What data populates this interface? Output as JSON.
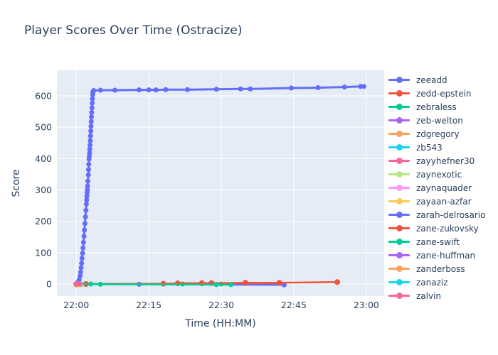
{
  "title": "Player Scores Over Time (Ostracize)",
  "colors": {
    "text": "#2a3f5f",
    "plot_background": "#E5ECF6",
    "gridline": "#ffffff",
    "palette": [
      "#636EFA",
      "#EF553B",
      "#00CC96",
      "#AB63FA",
      "#FFA15A",
      "#19D3F3",
      "#FF6692",
      "#B6E880",
      "#FF97FF",
      "#FECB52"
    ]
  },
  "chart_data": {
    "type": "line",
    "title": "Player Scores Over Time (Ostracize)",
    "xlabel": "Time (HH:MM)",
    "ylabel": "Score",
    "x_tick_labels": [
      "22:00",
      "22:15",
      "22:30",
      "22:45",
      "23:00"
    ],
    "x_tick_minutes": [
      0,
      15,
      30,
      45,
      60
    ],
    "y_ticks": [
      0,
      100,
      200,
      300,
      400,
      500,
      600
    ],
    "xlim_minutes": [
      -4,
      63.7
    ],
    "ylim": [
      -38.5,
      681.5
    ],
    "grid": true,
    "legend_position": "right",
    "series": [
      {
        "name": "zeeadd",
        "color": "#636EFA",
        "line_width": 3,
        "marker_r": 3.5,
        "points": [
          [
            0,
            0
          ],
          [
            0.4,
            6
          ],
          [
            0.6,
            14
          ],
          [
            0.8,
            26
          ],
          [
            0.9,
            38
          ],
          [
            1.0,
            52
          ],
          [
            1.1,
            66
          ],
          [
            1.2,
            82
          ],
          [
            1.3,
            98
          ],
          [
            1.4,
            115
          ],
          [
            1.5,
            133
          ],
          [
            1.6,
            152
          ],
          [
            1.7,
            172
          ],
          [
            1.8,
            193
          ],
          [
            1.9,
            214
          ],
          [
            2.0,
            235
          ],
          [
            2.1,
            255
          ],
          [
            2.15,
            268
          ],
          [
            2.2,
            280
          ],
          [
            2.25,
            292
          ],
          [
            2.3,
            300
          ],
          [
            2.35,
            312
          ],
          [
            2.4,
            328
          ],
          [
            2.5,
            348
          ],
          [
            2.55,
            365
          ],
          [
            2.6,
            382
          ],
          [
            2.65,
            398
          ],
          [
            2.7,
            408
          ],
          [
            2.75,
            418
          ],
          [
            2.8,
            430
          ],
          [
            2.85,
            443
          ],
          [
            2.9,
            457
          ],
          [
            2.95,
            472
          ],
          [
            3.0,
            488
          ],
          [
            3.05,
            503
          ],
          [
            3.1,
            518
          ],
          [
            3.15,
            533
          ],
          [
            3.2,
            547
          ],
          [
            3.25,
            562
          ],
          [
            3.3,
            577
          ],
          [
            3.35,
            591
          ],
          [
            3.4,
            604
          ],
          [
            3.45,
            612
          ],
          [
            3.6,
            617
          ],
          [
            5,
            618
          ],
          [
            8,
            618
          ],
          [
            13,
            619
          ],
          [
            15,
            619
          ],
          [
            16.5,
            619
          ],
          [
            18.5,
            620
          ],
          [
            23,
            620
          ],
          [
            29,
            621
          ],
          [
            34,
            622
          ],
          [
            36,
            622
          ],
          [
            44.5,
            625
          ],
          [
            50,
            626
          ],
          [
            55.5,
            628
          ],
          [
            58.8,
            630
          ],
          [
            59.5,
            630
          ]
        ]
      },
      {
        "name": "zedd-epstein",
        "color": "#EF553B",
        "line_width": 2.5,
        "marker_r": 3.5,
        "points": [
          [
            0,
            0
          ],
          [
            2,
            0
          ],
          [
            26,
            1
          ],
          [
            35,
            2
          ],
          [
            42,
            2
          ]
        ]
      },
      {
        "name": "zebraless",
        "color": "#00CC96",
        "line_width": 2.5,
        "marker_r": 3.5,
        "points": [
          [
            0,
            0
          ],
          [
            3,
            0
          ],
          [
            22,
            0
          ],
          [
            30,
            0
          ]
        ]
      },
      {
        "name": "zeb-welton",
        "color": "#AB63FA",
        "line_width": 2.5,
        "marker_r": 3.5,
        "points": [
          [
            0,
            0
          ],
          [
            1,
            0
          ]
        ]
      },
      {
        "name": "zdgregory",
        "color": "#FFA15A",
        "line_width": 2.5,
        "marker_r": 3.5,
        "points": [
          [
            0,
            0
          ],
          [
            0.5,
            0
          ]
        ]
      },
      {
        "name": "zb543",
        "color": "#19D3F3",
        "line_width": 2.5,
        "marker_r": 3.5,
        "points": [
          [
            0,
            0
          ],
          [
            1,
            0
          ]
        ]
      },
      {
        "name": "zayyhefner30",
        "color": "#FF6692",
        "line_width": 2.5,
        "marker_r": 3.5,
        "points": [
          [
            0,
            0
          ],
          [
            1,
            0
          ]
        ]
      },
      {
        "name": "zaynexotic",
        "color": "#B6E880",
        "line_width": 2.5,
        "marker_r": 3.5,
        "points": [
          [
            0,
            0
          ],
          [
            0.7,
            0
          ]
        ]
      },
      {
        "name": "zaynaquader",
        "color": "#FF97FF",
        "line_width": 2.5,
        "marker_r": 3.5,
        "points": [
          [
            0,
            0
          ],
          [
            0.9,
            0
          ]
        ]
      },
      {
        "name": "zayaan-azfar",
        "color": "#FECB52",
        "line_width": 2.5,
        "marker_r": 4,
        "points": [
          [
            0,
            -2
          ],
          [
            0.5,
            -2
          ]
        ]
      },
      {
        "name": "zarah-delrosario",
        "color": "#636EFA",
        "line_width": 2.5,
        "marker_r": 3.5,
        "points": [
          [
            0,
            0
          ],
          [
            13,
            -1
          ],
          [
            43,
            -3
          ]
        ]
      },
      {
        "name": "zane-zukovsky",
        "color": "#EF553B",
        "line_width": 2.5,
        "marker_r": 4,
        "points": [
          [
            0,
            0
          ],
          [
            2,
            0
          ],
          [
            18,
            1
          ],
          [
            21,
            2
          ],
          [
            26,
            3
          ],
          [
            28,
            3
          ],
          [
            35,
            4
          ],
          [
            42,
            4
          ],
          [
            54,
            6
          ]
        ]
      },
      {
        "name": "zane-swift",
        "color": "#00CC96",
        "line_width": 2.5,
        "marker_r": 3.5,
        "points": [
          [
            0,
            0
          ],
          [
            5,
            -1
          ],
          [
            29,
            -2
          ],
          [
            32,
            -2
          ]
        ]
      },
      {
        "name": "zane-huffman",
        "color": "#AB63FA",
        "line_width": 2.5,
        "marker_r": 3.5,
        "points": [
          [
            0,
            0
          ],
          [
            1,
            -1
          ]
        ]
      },
      {
        "name": "zanderboss",
        "color": "#FFA15A",
        "line_width": 2.5,
        "marker_r": 3.5,
        "points": [
          [
            0.3,
            -1
          ],
          [
            1,
            -1
          ]
        ]
      },
      {
        "name": "zanaziz",
        "color": "#19D3F3",
        "line_width": 2.5,
        "marker_r": 3.5,
        "points": [
          [
            0,
            0
          ],
          [
            0.8,
            0
          ]
        ]
      },
      {
        "name": "zalvin",
        "color": "#FF6692",
        "line_width": 2.5,
        "marker_r": 3.5,
        "points": [
          [
            0,
            0
          ],
          [
            0.6,
            0
          ]
        ]
      }
    ]
  }
}
